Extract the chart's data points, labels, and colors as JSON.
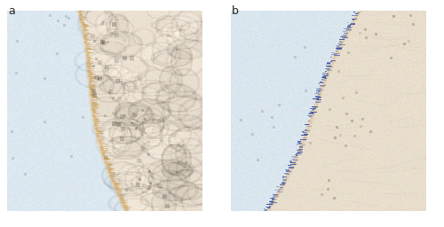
{
  "fig_width": 5.0,
  "fig_height": 2.56,
  "dpi": 100,
  "bg_color": "#ffffff",
  "label_a": "a",
  "label_b": "b",
  "label_fontsize": 9,
  "label_color": "#222222",
  "panel_a_lumen_color": [
    220,
    232,
    240
  ],
  "panel_a_tissue_color": [
    235,
    225,
    210
  ],
  "panel_a_brown_color": [
    195,
    145,
    60
  ],
  "panel_b_lumen_color": [
    218,
    230,
    238
  ],
  "panel_b_tissue_color": [
    232,
    222,
    205
  ],
  "panel_b_blue_color": [
    30,
    60,
    160
  ],
  "panel_b_brown_edge": [
    195,
    155,
    100
  ]
}
